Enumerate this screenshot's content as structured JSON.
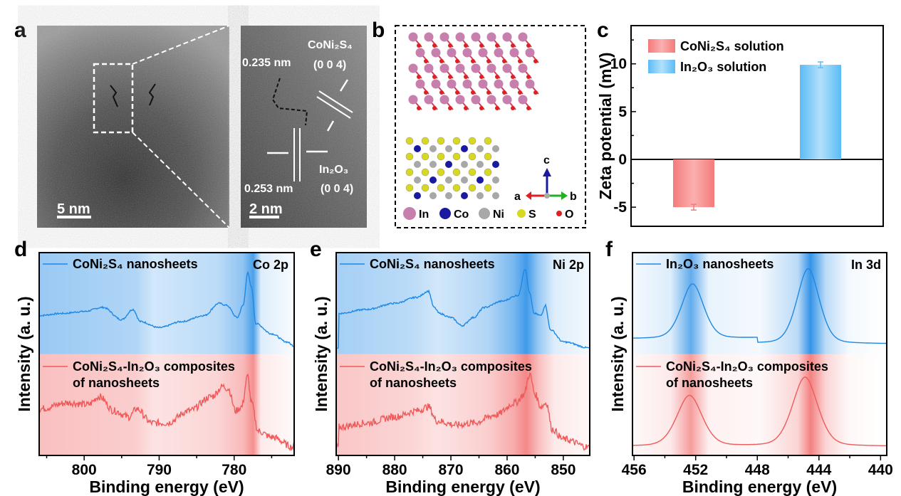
{
  "panel_labels": {
    "a": "a",
    "b": "b",
    "c": "c",
    "d": "d",
    "e": "e",
    "f": "f"
  },
  "panel_a": {
    "scale_bar_left": "5 nm",
    "scale_bar_right": "2 nm",
    "d_spacing_top": "0.235 nm",
    "d_spacing_bottom": "0.253 nm",
    "plane_top_material": "CoNi₂S₄",
    "plane_top_index": "(0 0 4)",
    "plane_bottom_material": "In₂O₃",
    "plane_bottom_index": "(0 0 4)"
  },
  "panel_b": {
    "legend": [
      {
        "label": "In",
        "color": "#c77fae"
      },
      {
        "label": "Co",
        "color": "#1a1aa0"
      },
      {
        "label": "Ni",
        "color": "#a8a8a8"
      },
      {
        "label": "S",
        "color": "#d8d820"
      },
      {
        "label": "O",
        "color": "#e02020"
      }
    ],
    "axes": {
      "a": "a",
      "b": "b",
      "c": "c"
    }
  },
  "chart_data": [
    {
      "id": "c",
      "type": "bar",
      "ylabel": "Zeta potential (mV)",
      "xlabel": "",
      "ylim": [
        -7,
        14
      ],
      "yticks": [
        -5,
        0,
        5,
        10
      ],
      "categories": [
        "CoNi₂S₄ solution",
        "In₂O₃ solution"
      ],
      "values": [
        -5.0,
        9.9
      ],
      "errors": [
        0.3,
        0.3
      ],
      "colors": [
        "#f47a7a",
        "#5bbcf5"
      ],
      "legend_position": "top-left"
    },
    {
      "id": "d",
      "type": "line",
      "title": "Co 2p",
      "xlabel": "Binding energy (eV)",
      "ylabel": "Intensity (a. u.)",
      "xlim": [
        806,
        772
      ],
      "ylim": [
        0,
        10
      ],
      "xticks": [
        800,
        790,
        780
      ],
      "series": [
        {
          "name": "CoNi₂S₄ nanosheets",
          "color": "#1e88e5",
          "points": [
            [
              806,
              6.9
            ],
            [
              803,
              7.0
            ],
            [
              800,
              7.1
            ],
            [
              797.5,
              7.3
            ],
            [
              795,
              6.7
            ],
            [
              793.5,
              7.2
            ],
            [
              792.5,
              6.6
            ],
            [
              790,
              6.3
            ],
            [
              787,
              6.6
            ],
            [
              784,
              6.9
            ],
            [
              782,
              7.5
            ],
            [
              781,
              7.4
            ],
            [
              779.6,
              6.8
            ],
            [
              778.8,
              7.4
            ],
            [
              778.2,
              9.0
            ],
            [
              777.7,
              8.3
            ],
            [
              777.1,
              6.5
            ],
            [
              775,
              6.0
            ],
            [
              773,
              5.6
            ],
            [
              772,
              5.4
            ]
          ]
        },
        {
          "name": "CoNi₂S₄-In₂O₃ composites",
          "name_line2": "of nanosheets",
          "color": "#f05a5a",
          "noise": 0.35,
          "points": [
            [
              806,
              2.3
            ],
            [
              802,
              2.6
            ],
            [
              799.5,
              2.5
            ],
            [
              798,
              2.9
            ],
            [
              796,
              2.2
            ],
            [
              794,
              1.9
            ],
            [
              793,
              2.3
            ],
            [
              791,
              1.6
            ],
            [
              789,
              1.6
            ],
            [
              786,
              2.2
            ],
            [
              783,
              2.9
            ],
            [
              781.5,
              3.4
            ],
            [
              780.8,
              3.3
            ],
            [
              779.8,
              2.2
            ],
            [
              779,
              2.4
            ],
            [
              778.2,
              3.9
            ],
            [
              777.7,
              2.6
            ],
            [
              776.8,
              1.2
            ],
            [
              775,
              0.9
            ],
            [
              772,
              0.4
            ]
          ]
        }
      ]
    },
    {
      "id": "e",
      "type": "line",
      "title": "Ni 2p",
      "xlabel": "Binding energy (eV)",
      "ylabel": "Intensity (a. u.)",
      "xlim": [
        890.4,
        845.3
      ],
      "ylim": [
        0,
        10
      ],
      "xticks": [
        890,
        880,
        870,
        860,
        850
      ],
      "series": [
        {
          "name": "CoNi₂S₄ nanosheets",
          "color": "#1e88e5",
          "points": [
            [
              890,
              7.0
            ],
            [
              885,
              7.2
            ],
            [
              880,
              7.5
            ],
            [
              876,
              7.8
            ],
            [
              874,
              8.1
            ],
            [
              873,
              7.3
            ],
            [
              872,
              7.0
            ],
            [
              870,
              6.8
            ],
            [
              868,
              6.4
            ],
            [
              866,
              6.8
            ],
            [
              864,
              7.3
            ],
            [
              861,
              7.6
            ],
            [
              858,
              7.9
            ],
            [
              856.8,
              9.2
            ],
            [
              856,
              8.0
            ],
            [
              855.2,
              7.0
            ],
            [
              854,
              6.9
            ],
            [
              853.2,
              7.4
            ],
            [
              852.3,
              6.2
            ],
            [
              850,
              5.6
            ],
            [
              845.3,
              5.3
            ]
          ]
        },
        {
          "name": "CoNi₂S₄-In₂O₃ composites",
          "name_line2": "of nanosheets",
          "color": "#f05a5a",
          "noise": 0.35,
          "points": [
            [
              890,
              1.4
            ],
            [
              885,
              1.6
            ],
            [
              880,
              1.9
            ],
            [
              876,
              2.2
            ],
            [
              874,
              2.4
            ],
            [
              872.5,
              1.7
            ],
            [
              869,
              1.5
            ],
            [
              866,
              1.6
            ],
            [
              862,
              2.0
            ],
            [
              858.5,
              2.6
            ],
            [
              857,
              3.0
            ],
            [
              856,
              4.0
            ],
            [
              855,
              3.0
            ],
            [
              854,
              2.4
            ],
            [
              853,
              2.6
            ],
            [
              852,
              1.3
            ],
            [
              850,
              0.8
            ],
            [
              845.3,
              0.4
            ]
          ]
        }
      ]
    },
    {
      "id": "f",
      "type": "line",
      "title": "In 3d",
      "xlabel": "Binding energy (eV)",
      "ylabel": "Intensity (a. u.)",
      "xlim": [
        456.1,
        439.6
      ],
      "ylim": [
        0,
        10
      ],
      "xticks": [
        456,
        452,
        448,
        444,
        440
      ],
      "series": [
        {
          "name": "In₂O₃ nanosheets",
          "color": "#1e88e5",
          "baseline": 5.5,
          "peaks": [
            [
              452.2,
              2.7,
              0.75
            ],
            [
              444.7,
              3.7,
              0.75
            ]
          ]
        },
        {
          "name": "CoNi₂S₄-In₂O₃ composites",
          "name_line2": "of nanosheets",
          "color": "#f05a5a",
          "baseline": 0.45,
          "peaks": [
            [
              452.4,
              2.5,
              0.85
            ],
            [
              444.9,
              3.4,
              0.85
            ]
          ]
        }
      ]
    }
  ]
}
